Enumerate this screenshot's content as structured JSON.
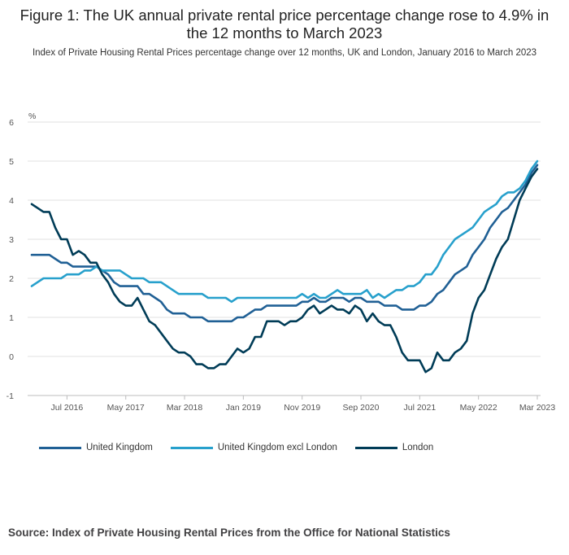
{
  "title": "Figure 1: The UK annual private rental price percentage change rose to 4.9% in the 12 months to March 2023",
  "subtitle": "Index of Private Housing Rental Prices percentage change over 12 months, UK and London, January 2016 to March 2023",
  "source": "Source: Index of Private Housing Rental Prices from the Office for National Statistics",
  "chart_data": {
    "type": "line",
    "ylabel": "%",
    "ylim": [
      -1,
      6
    ],
    "yticks": [
      -1,
      0,
      1,
      2,
      3,
      4,
      5,
      6
    ],
    "x_start": "Jan 2016",
    "x_end": "Mar 2023",
    "x_ticks": [
      {
        "label": "Jul 2016",
        "month_index": 6
      },
      {
        "label": "May 2017",
        "month_index": 16
      },
      {
        "label": "Mar 2018",
        "month_index": 26
      },
      {
        "label": "Jan 2019",
        "month_index": 36
      },
      {
        "label": "Nov 2019",
        "month_index": 46
      },
      {
        "label": "Sep 2020",
        "month_index": 56
      },
      {
        "label": "Jul 2021",
        "month_index": 66
      },
      {
        "label": "May 2022",
        "month_index": 76
      },
      {
        "label": "Mar 2023",
        "month_index": 86
      }
    ],
    "grid": "horizontal",
    "legend": "bottom-left",
    "series": [
      {
        "name": "United Kingdom",
        "color": "#206095",
        "values": [
          2.6,
          2.6,
          2.6,
          2.6,
          2.5,
          2.4,
          2.4,
          2.3,
          2.3,
          2.3,
          2.3,
          2.3,
          2.2,
          2.1,
          1.9,
          1.8,
          1.8,
          1.8,
          1.8,
          1.6,
          1.6,
          1.5,
          1.4,
          1.2,
          1.1,
          1.1,
          1.1,
          1.0,
          1.0,
          1.0,
          0.9,
          0.9,
          0.9,
          0.9,
          0.9,
          1.0,
          1.0,
          1.1,
          1.2,
          1.2,
          1.3,
          1.3,
          1.3,
          1.3,
          1.3,
          1.3,
          1.4,
          1.4,
          1.5,
          1.4,
          1.4,
          1.5,
          1.5,
          1.5,
          1.4,
          1.5,
          1.5,
          1.4,
          1.4,
          1.4,
          1.3,
          1.3,
          1.3,
          1.2,
          1.2,
          1.2,
          1.3,
          1.3,
          1.4,
          1.6,
          1.7,
          1.9,
          2.1,
          2.2,
          2.3,
          2.6,
          2.8,
          3.0,
          3.3,
          3.5,
          3.7,
          3.8,
          4.0,
          4.2,
          4.4,
          4.7,
          4.9
        ]
      },
      {
        "name": "United Kingdom excl London",
        "color": "#27A0CC",
        "values": [
          1.8,
          1.9,
          2.0,
          2.0,
          2.0,
          2.0,
          2.1,
          2.1,
          2.1,
          2.2,
          2.2,
          2.3,
          2.2,
          2.2,
          2.2,
          2.2,
          2.1,
          2.0,
          2.0,
          2.0,
          1.9,
          1.9,
          1.9,
          1.8,
          1.7,
          1.6,
          1.6,
          1.6,
          1.6,
          1.6,
          1.5,
          1.5,
          1.5,
          1.5,
          1.4,
          1.5,
          1.5,
          1.5,
          1.5,
          1.5,
          1.5,
          1.5,
          1.5,
          1.5,
          1.5,
          1.5,
          1.6,
          1.5,
          1.6,
          1.5,
          1.5,
          1.6,
          1.7,
          1.6,
          1.6,
          1.6,
          1.6,
          1.7,
          1.5,
          1.6,
          1.5,
          1.6,
          1.7,
          1.7,
          1.8,
          1.8,
          1.9,
          2.1,
          2.1,
          2.3,
          2.6,
          2.8,
          3.0,
          3.1,
          3.2,
          3.3,
          3.5,
          3.7,
          3.8,
          3.9,
          4.1,
          4.2,
          4.2,
          4.3,
          4.5,
          4.8,
          5.0
        ]
      },
      {
        "name": "London",
        "color": "#003C57",
        "values": [
          3.9,
          3.8,
          3.7,
          3.7,
          3.3,
          3.0,
          3.0,
          2.6,
          2.7,
          2.6,
          2.4,
          2.4,
          2.1,
          1.9,
          1.6,
          1.4,
          1.3,
          1.3,
          1.5,
          1.2,
          0.9,
          0.8,
          0.6,
          0.4,
          0.2,
          0.1,
          0.1,
          0.0,
          -0.2,
          -0.2,
          -0.3,
          -0.3,
          -0.2,
          -0.2,
          0.0,
          0.2,
          0.1,
          0.2,
          0.5,
          0.5,
          0.9,
          0.9,
          0.9,
          0.8,
          0.9,
          0.9,
          1.0,
          1.2,
          1.3,
          1.1,
          1.2,
          1.3,
          1.2,
          1.2,
          1.1,
          1.3,
          1.2,
          0.9,
          1.1,
          0.9,
          0.8,
          0.8,
          0.5,
          0.1,
          -0.1,
          -0.1,
          -0.1,
          -0.4,
          -0.3,
          0.1,
          -0.1,
          -0.1,
          0.1,
          0.2,
          0.4,
          1.1,
          1.5,
          1.7,
          2.1,
          2.5,
          2.8,
          3.0,
          3.5,
          4.0,
          4.3,
          4.6,
          4.8
        ]
      }
    ]
  }
}
